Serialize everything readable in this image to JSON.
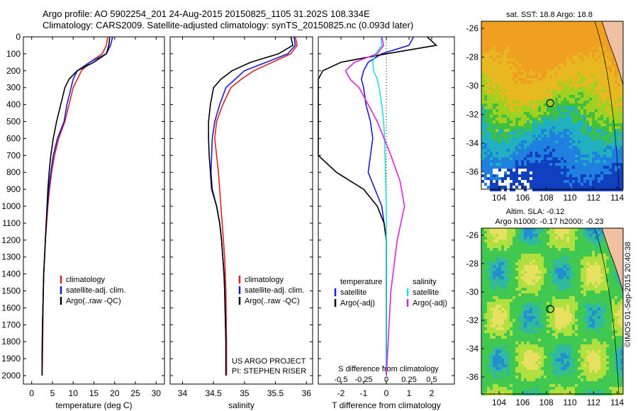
{
  "header": {
    "line1": "Argo profile: AO 5902254_201 24-Aug-2015 20150825_1105 31.202S 108.334E",
    "line2": "Climatology: CARS2009. Satellite-adjusted climatology: synTS_20150825.nc (0.093d later)"
  },
  "colors": {
    "climatology": "#e02020",
    "satellite": "#1a1adc",
    "argo": "#000000",
    "sat_salinity": "#20e0e0",
    "argo_salinity_diff": "#e020e0"
  },
  "depth_ticks": [
    "0",
    "100",
    "200",
    "300",
    "400",
    "500",
    "600",
    "700",
    "800",
    "900",
    "1000",
    "1100",
    "1200",
    "1300",
    "1400",
    "1500",
    "1600",
    "1700",
    "1800",
    "1900",
    "2000"
  ],
  "temp_panel": {
    "xlabel": "temperature (deg C)",
    "xticks": [
      "0",
      "5",
      "10",
      "15",
      "20",
      "25",
      "30"
    ],
    "legend": [
      "climatology",
      "satellite-adj. clim.",
      "Argo(..raw -QC)"
    ]
  },
  "sal_panel": {
    "xlabel": "salinity",
    "xticks": [
      "34",
      "34.5",
      "35",
      "35.5",
      "36"
    ],
    "legend": [
      "climatology",
      "satellite-adj. clim.",
      "Argo(..raw -QC)"
    ],
    "credit1": "US ARGO PROJECT",
    "credit2": "PI: STEPHEN RISER"
  },
  "diff_panel": {
    "xlabel": "T difference from climatology",
    "s_label": "S difference from climatology",
    "t_ticks": [
      "-2",
      "-1",
      "0",
      "1",
      "2"
    ],
    "s_ticks": [
      "-0.5",
      "-0.25",
      "0",
      "0.25",
      "0.5"
    ],
    "legend_temp_title": "temperature",
    "legend_sal_title": "salinity",
    "legend_temp": [
      "satellite",
      "Argo(-adj)"
    ],
    "legend_sal": [
      "satellite",
      "Argo(-adj)"
    ]
  },
  "map_sst": {
    "title": "sat. SST: 18.8 Argo: 18.8",
    "lat_ticks": [
      "-26",
      "-28",
      "-30",
      "-32",
      "-34",
      "-36"
    ],
    "lon_ticks": [
      "104",
      "106",
      "108",
      "110",
      "112",
      "114"
    ]
  },
  "map_sla": {
    "title1": "Altim. SLA: -0.12",
    "title2": "Argo h1000: -0.17 h2000: -0.23",
    "lat_ticks": [
      "-26",
      "-28",
      "-30",
      "-32",
      "-34",
      "-36"
    ],
    "lon_ticks": [
      "104",
      "106",
      "108",
      "110",
      "112",
      "114"
    ]
  },
  "stamp": "©IMOS 01-Sep-2015 20:40:38",
  "chart_data": [
    {
      "type": "line",
      "xlabel": "temperature (deg C)",
      "xlim": [
        -2,
        32
      ],
      "ylim": [
        2050,
        0
      ],
      "series": [
        {
          "name": "climatology",
          "color": "#e02020",
          "x": [
            18.3,
            18.0,
            17.0,
            14.0,
            12.0,
            11.0,
            10.0,
            9.0,
            8.0,
            6.5,
            5.5,
            4.8,
            4.3,
            3.9,
            3.6,
            3.3,
            3.1,
            2.9,
            2.8,
            2.7,
            2.6,
            2.5
          ],
          "y": [
            0,
            50,
            100,
            150,
            200,
            250,
            300,
            400,
            500,
            600,
            700,
            800,
            900,
            1000,
            1100,
            1200,
            1300,
            1400,
            1500,
            1700,
            1900,
            2000
          ]
        },
        {
          "name": "satellite-adj. clim.",
          "color": "#1a1adc",
          "x": [
            19.5,
            19.0,
            18.0,
            14.0,
            11.0,
            10.0,
            9.5,
            8.5,
            7.8,
            6.2,
            5.2,
            4.6,
            4.1,
            3.8,
            3.5,
            3.3,
            3.1,
            2.9,
            2.8,
            2.6,
            2.5,
            2.5
          ],
          "y": [
            0,
            50,
            100,
            150,
            200,
            250,
            300,
            400,
            500,
            600,
            700,
            800,
            900,
            1000,
            1100,
            1200,
            1300,
            1400,
            1500,
            1700,
            1900,
            2000
          ]
        },
        {
          "name": "Argo(..raw -QC)",
          "color": "#000000",
          "x": [
            18.8,
            18.6,
            18.0,
            15.0,
            11.0,
            9.0,
            8.0,
            7.0,
            6.0,
            5.2,
            4.6,
            4.2,
            3.9,
            3.7,
            3.5,
            3.3,
            3.1,
            2.9,
            2.8,
            2.6,
            2.5,
            2.5
          ],
          "y": [
            0,
            50,
            100,
            150,
            200,
            250,
            300,
            400,
            500,
            600,
            700,
            800,
            900,
            1000,
            1100,
            1200,
            1300,
            1400,
            1500,
            1700,
            1900,
            2000
          ]
        }
      ]
    },
    {
      "type": "line",
      "xlabel": "salinity",
      "xlim": [
        33.8,
        36.1
      ],
      "ylim": [
        2050,
        0
      ],
      "series": [
        {
          "name": "climatology",
          "color": "#e02020",
          "x": [
            35.82,
            35.85,
            35.75,
            35.45,
            35.15,
            34.95,
            34.78,
            34.65,
            34.55,
            34.52,
            34.55,
            34.58,
            34.6,
            34.62,
            34.64,
            34.66,
            34.68,
            34.69,
            34.7,
            34.71,
            34.71
          ],
          "y": [
            0,
            50,
            100,
            150,
            200,
            250,
            300,
            400,
            500,
            600,
            700,
            800,
            900,
            1000,
            1100,
            1200,
            1300,
            1400,
            1500,
            1800,
            2000
          ]
        },
        {
          "name": "satellite-adj. clim.",
          "color": "#1a1adc",
          "x": [
            35.8,
            35.82,
            35.7,
            35.35,
            35.0,
            34.85,
            34.7,
            34.6,
            34.52,
            34.48,
            34.47,
            34.46,
            34.48,
            34.55,
            34.6,
            34.63,
            34.65,
            34.67,
            34.68,
            34.7,
            34.7
          ],
          "y": [
            0,
            50,
            100,
            150,
            200,
            250,
            300,
            400,
            500,
            600,
            700,
            800,
            900,
            1000,
            1100,
            1200,
            1300,
            1400,
            1500,
            1800,
            2000
          ]
        },
        {
          "name": "Argo(..raw -QC)",
          "color": "#000000",
          "x": [
            35.75,
            35.78,
            35.55,
            35.1,
            34.8,
            34.62,
            34.5,
            34.45,
            34.42,
            34.42,
            34.43,
            34.45,
            34.47,
            34.55,
            34.6,
            34.63,
            34.65,
            34.67,
            34.68,
            34.7,
            34.7
          ],
          "y": [
            0,
            50,
            100,
            150,
            200,
            250,
            300,
            400,
            500,
            600,
            700,
            800,
            900,
            1000,
            1100,
            1200,
            1300,
            1400,
            1500,
            1800,
            2000
          ]
        }
      ]
    },
    {
      "type": "line",
      "xlabel": "T difference from climatology",
      "xlim": [
        -3,
        3
      ],
      "ylim": [
        2050,
        0
      ],
      "series": [
        {
          "name": "temperature satellite",
          "color": "#1a1adc",
          "x": [
            1.2,
            1.0,
            -0.2,
            -0.8,
            -1.0,
            -1.1,
            -1.0,
            -0.9,
            -0.7,
            -0.6,
            -0.7,
            -0.8,
            -0.5,
            -0.2,
            -0.1,
            0.0,
            0.0,
            0.0,
            0.0
          ],
          "y": [
            0,
            50,
            100,
            150,
            200,
            250,
            300,
            400,
            500,
            600,
            700,
            800,
            900,
            1000,
            1100,
            1200,
            1400,
            1700,
            2000
          ]
        },
        {
          "name": "temperature Argo(-adj)",
          "color": "#000000",
          "x": [
            1.8,
            2.2,
            0.0,
            -2.0,
            -2.8,
            -3.0,
            -3.0,
            -3.0,
            -3.0,
            -3.0,
            -3.0,
            -2.2,
            -1.0,
            -0.4,
            -0.1,
            0.0,
            0.0,
            0.0
          ],
          "y": [
            0,
            50,
            100,
            150,
            200,
            250,
            300,
            400,
            500,
            600,
            700,
            800,
            900,
            1000,
            1100,
            1200,
            1500,
            2000
          ]
        },
        {
          "name": "salinity satellite",
          "color": "#20e0e0",
          "x": [
            -0.06,
            -0.05,
            -0.12,
            -0.15,
            -0.14,
            -0.1,
            -0.08,
            -0.05,
            -0.03,
            -0.02,
            -0.01,
            0.0,
            0.0,
            0.0,
            0.0
          ],
          "y": [
            0,
            50,
            100,
            150,
            200,
            250,
            300,
            400,
            500,
            600,
            800,
            1000,
            1300,
            1700,
            2000
          ]
        },
        {
          "name": "salinity Argo(-adj)",
          "color": "#e020e0",
          "x": [
            -0.05,
            -0.03,
            -0.1,
            -0.35,
            -0.45,
            -0.4,
            -0.3,
            -0.2,
            -0.1,
            0.05,
            0.15,
            0.2,
            0.12,
            0.05,
            0.02,
            0.0
          ],
          "y": [
            0,
            50,
            100,
            150,
            200,
            250,
            300,
            400,
            500,
            700,
            850,
            1000,
            1200,
            1500,
            1800,
            2000
          ]
        }
      ]
    }
  ]
}
